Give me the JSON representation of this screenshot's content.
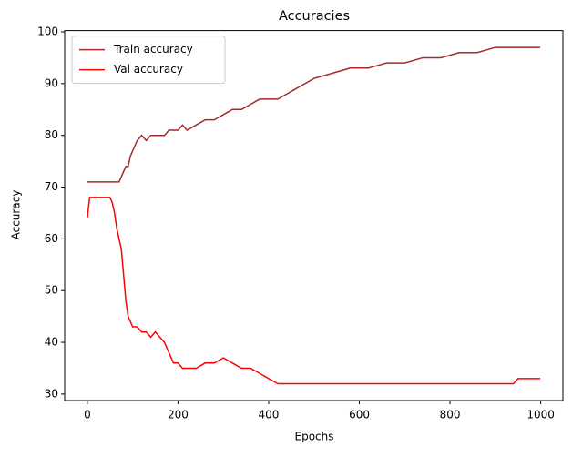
{
  "chart_data": {
    "type": "line",
    "title": "Accuracies",
    "xlabel": "Epochs",
    "ylabel": "Accuracy",
    "x": [
      0,
      5,
      10,
      20,
      30,
      40,
      50,
      55,
      60,
      65,
      70,
      75,
      80,
      85,
      90,
      95,
      100,
      105,
      110,
      120,
      130,
      140,
      150,
      160,
      170,
      180,
      190,
      200,
      210,
      220,
      240,
      260,
      280,
      300,
      320,
      340,
      360,
      380,
      400,
      420,
      440,
      460,
      480,
      500,
      540,
      580,
      620,
      660,
      700,
      740,
      780,
      820,
      860,
      900,
      940,
      950,
      960,
      999
    ],
    "series": [
      {
        "name": "Train accuracy",
        "color": "#a52a2a",
        "values": [
          71,
          71,
          71,
          71,
          71,
          71,
          71,
          71,
          71,
          71,
          71,
          72,
          73,
          74,
          74,
          76,
          77,
          78,
          79,
          80,
          79,
          80,
          80,
          80,
          80,
          81,
          81,
          81,
          82,
          81,
          82,
          83,
          83,
          84,
          85,
          85,
          86,
          87,
          87,
          87,
          88,
          89,
          90,
          91,
          92,
          93,
          93,
          94,
          94,
          95,
          95,
          96,
          96,
          97,
          97,
          97,
          97,
          97
        ]
      },
      {
        "name": "Val accuracy",
        "color": "#ff0000",
        "values": [
          64,
          68,
          68,
          68,
          68,
          68,
          68,
          67,
          65,
          62,
          60,
          58,
          53,
          48,
          45,
          44,
          43,
          43,
          43,
          42,
          42,
          41,
          42,
          41,
          40,
          38,
          36,
          36,
          35,
          35,
          35,
          36,
          36,
          37,
          36,
          35,
          35,
          34,
          33,
          32,
          32,
          32,
          32,
          32,
          32,
          32,
          32,
          32,
          32,
          32,
          32,
          32,
          32,
          32,
          32,
          33,
          33,
          33
        ]
      }
    ],
    "xlim": [
      -50,
      1049
    ],
    "ylim": [
      28.75,
      100.25
    ],
    "xticks": [
      0,
      200,
      400,
      600,
      800,
      1000
    ],
    "yticks": [
      30,
      40,
      50,
      60,
      70,
      80,
      90,
      100
    ],
    "legend": "upper left"
  }
}
